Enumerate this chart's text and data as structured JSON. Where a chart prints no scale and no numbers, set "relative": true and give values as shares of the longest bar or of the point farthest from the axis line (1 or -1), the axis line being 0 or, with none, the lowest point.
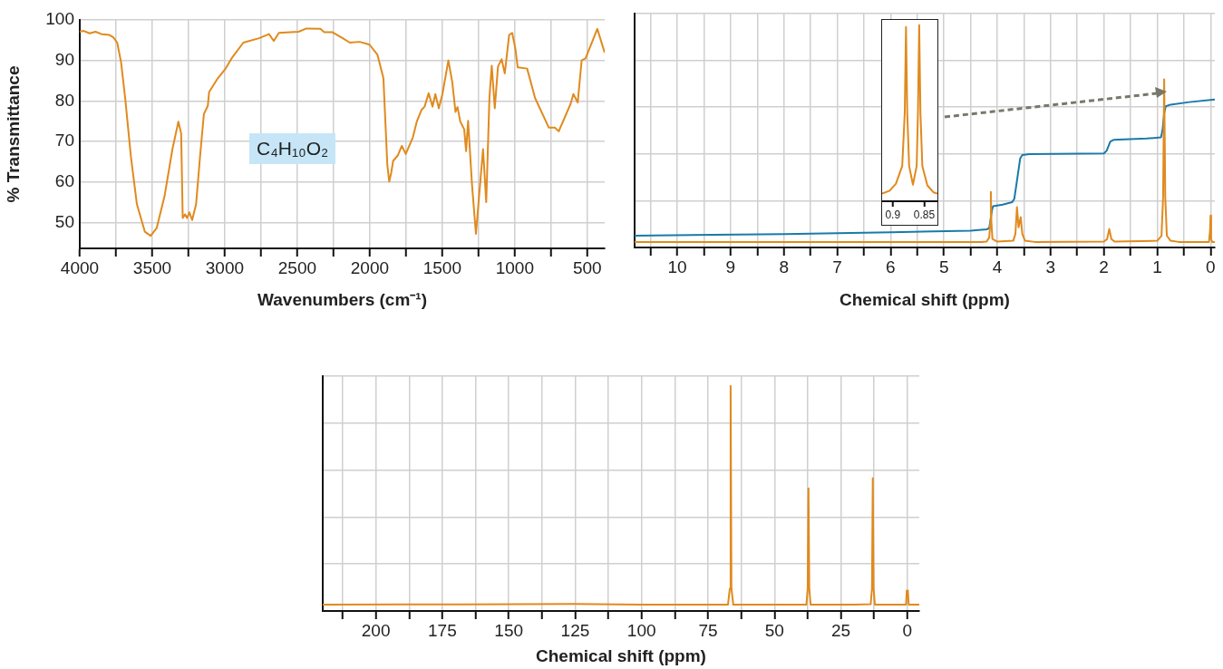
{
  "chart_data": [
    {
      "type": "line",
      "xlabel": "Wavenumbers (cm⁻¹)",
      "ylabel": "% Transmittance",
      "annotations": [
        "C₄H₁₀O₂"
      ],
      "grid": true,
      "marker": "none",
      "xlim": [
        4000,
        380
      ],
      "ylim": [
        43.6,
        100
      ],
      "xticks": [
        4000,
        {
          "value": 3750,
          "label": null
        },
        3500,
        {
          "value": 3250,
          "label": null
        },
        3000,
        {
          "value": 2750,
          "label": null
        },
        2500,
        {
          "value": 2250,
          "label": null
        },
        2000,
        {
          "value": 1750,
          "label": null
        },
        1500,
        {
          "value": 1250,
          "label": null
        },
        1000,
        {
          "value": 750,
          "label": null
        },
        500
      ],
      "yticks": [
        50,
        60,
        70,
        80,
        90,
        100
      ],
      "series": [
        {
          "color": "#e08a1e",
          "x": [
            4000,
            3973,
            3932,
            3891,
            3850,
            3796,
            3769,
            3742,
            3715,
            3687,
            3647,
            3606,
            3551,
            3511,
            3470,
            3416,
            3361,
            3320,
            3301,
            3290,
            3274,
            3260,
            3244,
            3225,
            3198,
            3171,
            3144,
            3117,
            3108,
            3048,
            2994,
            2953,
            2872,
            2763,
            2695,
            2662,
            2627,
            2491,
            2437,
            2341,
            2314,
            2260,
            2192,
            2138,
            2070,
            2002,
            1947,
            1906,
            1879,
            1866,
            1852,
            1839,
            1806,
            1779,
            1752,
            1703,
            1676,
            1643,
            1622,
            1594,
            1567,
            1548,
            1524,
            1499,
            1458,
            1431,
            1409,
            1395,
            1376,
            1349,
            1336,
            1322,
            1295,
            1268,
            1235,
            1219,
            1197,
            1175,
            1159,
            1138,
            1116,
            1091,
            1069,
            1039,
            1018,
            996,
            980,
            915,
            860,
            765,
            724,
            697,
            615,
            596,
            566,
            539,
            512,
            431,
            380
          ],
          "values": [
            97.1,
            97.3,
            96.7,
            97.1,
            96.5,
            96.3,
            95.7,
            94.4,
            89.5,
            80.7,
            66.1,
            54.5,
            47.7,
            46.7,
            48.6,
            56.4,
            68.1,
            74.9,
            72,
            51.1,
            52,
            51.1,
            52.5,
            50.6,
            54.5,
            66.1,
            76.8,
            78.8,
            82.2,
            85.6,
            88,
            90.5,
            94.4,
            95.5,
            96.5,
            94.8,
            96.8,
            97.1,
            97.9,
            97.8,
            97,
            97,
            95.6,
            94.4,
            94.6,
            93.9,
            91.4,
            85.6,
            64.2,
            60.1,
            62.3,
            65.2,
            66.6,
            68.9,
            66.9,
            71,
            74.9,
            77.8,
            78.6,
            81.9,
            78.6,
            81.7,
            78.2,
            81.7,
            90,
            84.6,
            77.3,
            78.5,
            74.9,
            73,
            67.6,
            75.1,
            59.3,
            47.2,
            61.3,
            68.1,
            55,
            80.7,
            88.7,
            78.2,
            88.5,
            90.3,
            86.8,
            96.3,
            96.8,
            92.9,
            88.3,
            88,
            80.7,
            73.4,
            73.4,
            72.5,
            79.3,
            81.7,
            79.6,
            90,
            90.5,
            97.8,
            91.9
          ]
        }
      ]
    },
    {
      "type": "line",
      "xlabel": "Chemical shift (ppm)",
      "relative": true,
      "grid": true,
      "marker": "none",
      "xlim": [
        10.8,
        -0.08
      ],
      "xticks": [
        {
          "value": 10.5,
          "label": null
        },
        10,
        {
          "value": 9.5,
          "label": null
        },
        9,
        {
          "value": 8.5,
          "label": null
        },
        8,
        {
          "value": 7.5,
          "label": null
        },
        7,
        {
          "value": 6.5,
          "label": null
        },
        6,
        {
          "value": 5.5,
          "label": null
        },
        5,
        {
          "value": 4.5,
          "label": null
        },
        4,
        {
          "value": 3.5,
          "label": null
        },
        3,
        {
          "value": 2.5,
          "label": null
        },
        2,
        {
          "value": 1.5,
          "label": null
        },
        1,
        {
          "value": 0.5,
          "label": null
        },
        0
      ],
      "series": [
        {
          "color": "#e08a1e",
          "x": [
            10.8,
            4.3,
            4.2,
            4.15,
            4.13,
            4.12,
            4.11,
            4.09,
            4.0,
            3.7,
            3.66,
            3.63,
            3.6,
            3.56,
            3.53,
            3.48,
            3.3,
            2.0,
            1.94,
            1.9,
            1.86,
            1.8,
            1.0,
            0.92,
            0.89,
            0.87,
            0.85,
            0.82,
            0.75,
            0.6,
            0.03,
            0.01,
            0,
            -0.01,
            -0.03,
            -0.08
          ],
          "values": [
            0.032,
            0.032,
            0.035,
            0.06,
            0.15,
            0.33,
            0.15,
            0.05,
            0.035,
            0.04,
            0.08,
            0.24,
            0.12,
            0.18,
            0.08,
            0.04,
            0.033,
            0.035,
            0.05,
            0.11,
            0.05,
            0.035,
            0.04,
            0.07,
            0.3,
            1,
            0.3,
            0.07,
            0.04,
            0.033,
            0.033,
            0.1,
            0.19,
            0.05,
            0.033,
            0.032
          ]
        },
        {
          "color": "#1a7aa8",
          "x": [
            10.8,
            8,
            6,
            4.5,
            4.2,
            4.15,
            4.1,
            4.08,
            3.9,
            3.72,
            3.68,
            3.62,
            3.57,
            3.53,
            3.4,
            2.0,
            1.95,
            1.88,
            1.82,
            1.2,
            0.93,
            0.9,
            0.87,
            0.84,
            0.75,
            0.4,
            -0.08
          ],
          "values": [
            0.07,
            0.08,
            0.09,
            0.1,
            0.108,
            0.115,
            0.22,
            0.245,
            0.255,
            0.27,
            0.29,
            0.42,
            0.53,
            0.55,
            0.555,
            0.56,
            0.575,
            0.63,
            0.64,
            0.648,
            0.655,
            0.7,
            0.8,
            0.84,
            0.85,
            0.865,
            0.88
          ]
        }
      ]
    },
    {
      "type": "line",
      "relative": true,
      "marker": "none",
      "xlim": [
        0.917,
        0.829
      ],
      "xticks": [
        0.9,
        0.85
      ],
      "series": [
        {
          "color": "#e08a1e",
          "x": [
            0.917,
            0.905,
            0.895,
            0.885,
            0.881,
            0.879,
            0.877,
            0.874,
            0.868,
            0.862,
            0.86,
            0.858,
            0.856,
            0.853,
            0.845,
            0.835,
            0.829
          ],
          "values": [
            0.043,
            0.06,
            0.1,
            0.2,
            0.5,
            0.99,
            0.5,
            0.2,
            0.094,
            0.2,
            0.5,
            1,
            0.5,
            0.2,
            0.09,
            0.05,
            0.043
          ]
        }
      ]
    },
    {
      "type": "line",
      "xlabel": "Chemical shift (ppm)",
      "relative": true,
      "grid": true,
      "marker": "none",
      "xlim": [
        220,
        -4.5
      ],
      "xticks": [
        {
          "value": 212.5,
          "label": null
        },
        200,
        {
          "value": 187.5,
          "label": null
        },
        175,
        {
          "value": 162.5,
          "label": null
        },
        150,
        {
          "value": 137.5,
          "label": null
        },
        125,
        {
          "value": 112.5,
          "label": null
        },
        100,
        {
          "value": 87.5,
          "label": null
        },
        75,
        {
          "value": 62.5,
          "label": null
        },
        50,
        {
          "value": 37.5,
          "label": null
        },
        25,
        {
          "value": 12.5,
          "label": null
        },
        0
      ],
      "series": [
        {
          "color": "#e08a1e",
          "x": [
            220,
            190,
            125,
            100,
            67.5,
            66.8,
            66.5,
            66.2,
            65.5,
            38,
            37.5,
            37.2,
            36.9,
            36.4,
            20,
            13.8,
            13.3,
            13,
            12.7,
            12.2,
            0.5,
            0.2,
            -0.2,
            -0.5,
            -4.5
          ],
          "values": [
            0.028,
            0.029,
            0.031,
            0.028,
            0.028,
            0.1,
            1,
            0.1,
            0.028,
            0.028,
            0.1,
            0.545,
            0.1,
            0.028,
            0.028,
            0.03,
            0.1,
            0.59,
            0.1,
            0.028,
            0.028,
            0.091,
            0.091,
            0.028,
            0.028
          ]
        }
      ]
    }
  ]
}
